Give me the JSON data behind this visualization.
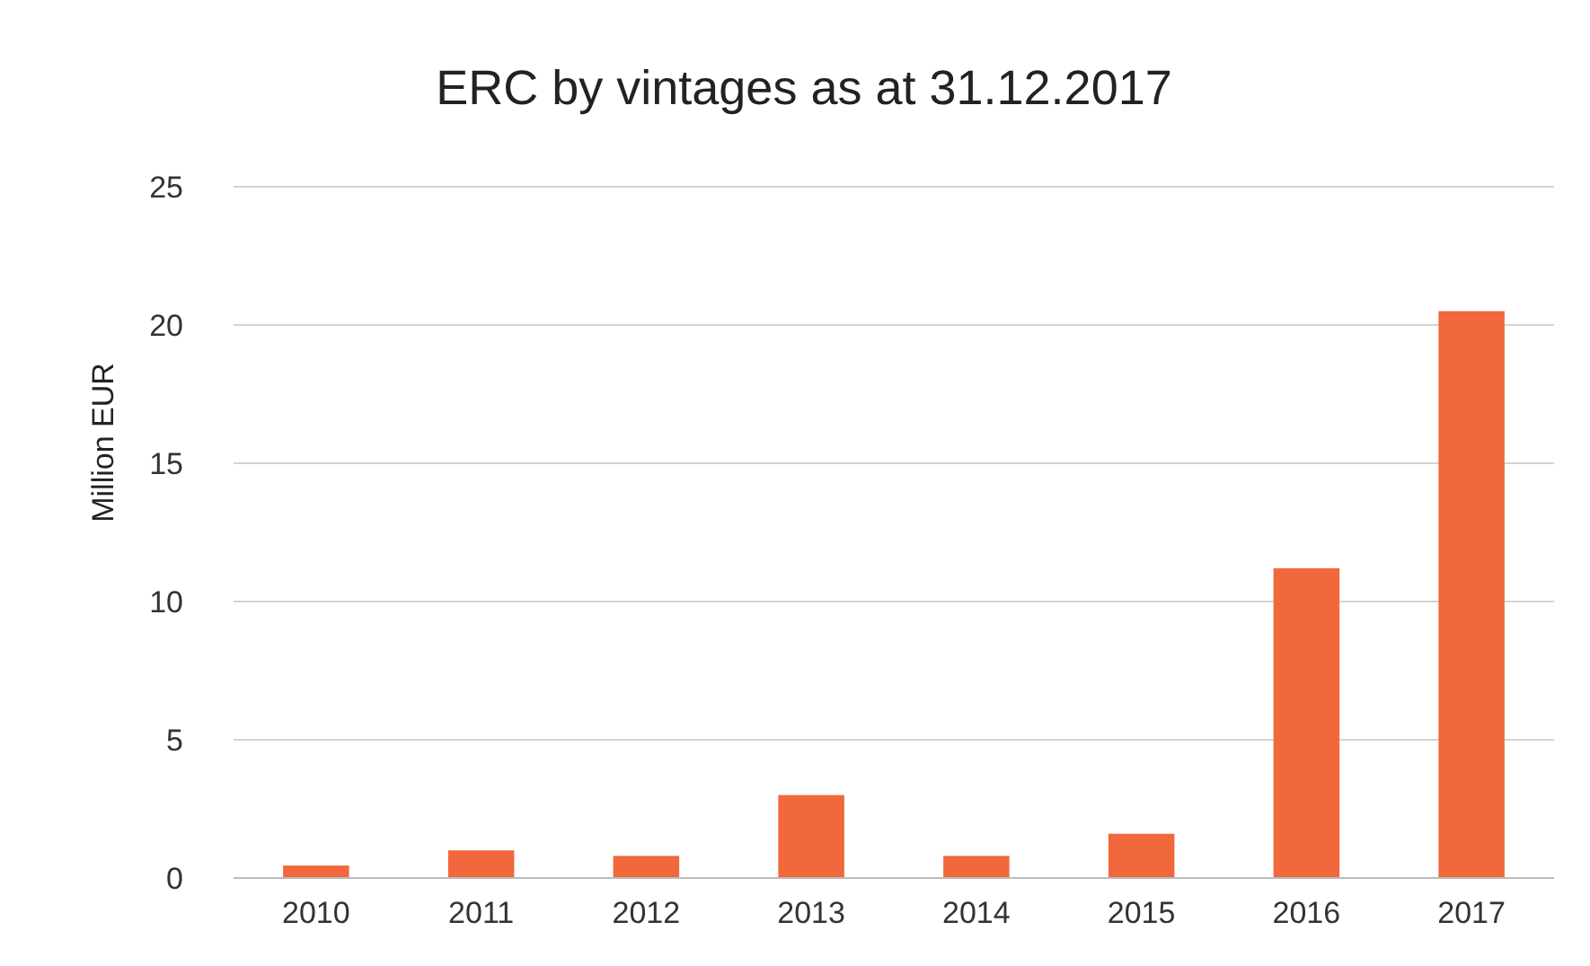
{
  "chart_data": {
    "type": "bar",
    "title": "ERC by vintages as at 31.12.2017",
    "ylabel": "Million EUR",
    "categories": [
      "2010",
      "2011",
      "2012",
      "2013",
      "2014",
      "2015",
      "2016",
      "2017"
    ],
    "values": [
      0.45,
      1.0,
      0.8,
      3.0,
      0.8,
      1.6,
      11.2,
      20.5
    ],
    "color": "#f0683c",
    "ylim": [
      0,
      25
    ],
    "yticks": [
      0,
      5,
      10,
      15,
      20,
      25
    ],
    "grid": "y"
  }
}
